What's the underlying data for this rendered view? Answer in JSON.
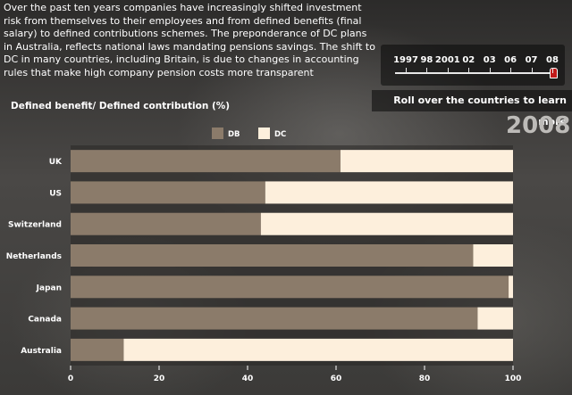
{
  "intro_text": "Over the past ten years companies have increasingly shifted investment risk from themselves to their employees and from defined benefits (final salary) to defined contributions schemes. The preponderance of DC plans in Australia, reflects national laws mandating pensions savings. The shift to DC in many countries, including Britain, is due to changes in accounting rules that make high company pension costs more transparent",
  "timeline": {
    "years": [
      "1997",
      "98",
      "2001",
      "02",
      "03",
      "06",
      "07",
      "08"
    ],
    "selected": "08"
  },
  "hint_text": "Roll over the countries to learn more",
  "selected_year_display": "2008",
  "colors": {
    "db": "#8b7b6a",
    "dc": "#fdefdc",
    "grid": "#2a2826",
    "text": "#ffffff"
  },
  "chart_data": {
    "type": "bar",
    "orientation": "horizontal",
    "stacked": true,
    "title": "Defined benefit/ Defined contribution (%)",
    "categories": [
      "UK",
      "US",
      "Switzerland",
      "Netherlands",
      "Japan",
      "Canada",
      "Australia"
    ],
    "series": [
      {
        "name": "DB",
        "values": [
          61,
          44,
          43,
          91,
          99,
          92,
          12
        ]
      },
      {
        "name": "DC",
        "values": [
          39,
          56,
          57,
          9,
          1,
          8,
          88
        ]
      }
    ],
    "xlim": [
      0,
      100
    ],
    "xticks": [
      0,
      20,
      40,
      60,
      80,
      100
    ],
    "legend_position": "top"
  }
}
